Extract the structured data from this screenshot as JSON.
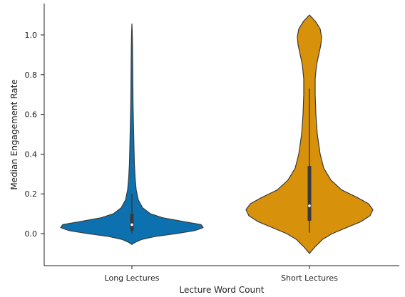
{
  "chart_data": {
    "type": "violin",
    "xlabel": "Lecture Word Count",
    "ylabel": "Median Engagement Rate",
    "categories": [
      "Long Lectures",
      "Short Lectures"
    ],
    "ylim": [
      -0.15,
      1.15
    ],
    "yticks": [
      0.0,
      0.2,
      0.4,
      0.6,
      0.8,
      1.0
    ],
    "ytick_labels": [
      "0.0",
      "0.2",
      "0.4",
      "0.6",
      "0.8",
      "1.0"
    ],
    "grid": false,
    "series": [
      {
        "category": "Long Lectures",
        "color": "#0d71b0",
        "median": 0.045,
        "q1": 0.015,
        "q3": 0.1,
        "whisker_low": 0.0,
        "whisker_high": 0.2,
        "density": [
          [
            -0.055,
            0.0
          ],
          [
            -0.045,
            0.04
          ],
          [
            -0.03,
            0.13
          ],
          [
            -0.015,
            0.32
          ],
          [
            0.0,
            0.62
          ],
          [
            0.015,
            0.88
          ],
          [
            0.03,
            1.0
          ],
          [
            0.045,
            0.97
          ],
          [
            0.06,
            0.74
          ],
          [
            0.08,
            0.43
          ],
          [
            0.1,
            0.26
          ],
          [
            0.13,
            0.15
          ],
          [
            0.17,
            0.09
          ],
          [
            0.22,
            0.06
          ],
          [
            0.28,
            0.045
          ],
          [
            0.35,
            0.035
          ],
          [
            0.45,
            0.028
          ],
          [
            0.55,
            0.022
          ],
          [
            0.65,
            0.016
          ],
          [
            0.8,
            0.012
          ],
          [
            0.95,
            0.008
          ],
          [
            1.02,
            0.004
          ],
          [
            1.055,
            0.0
          ]
        ]
      },
      {
        "category": "Short Lectures",
        "color": "#d8910b",
        "median": 0.14,
        "q1": 0.065,
        "q3": 0.34,
        "whisker_low": 0.005,
        "whisker_high": 0.73,
        "density": [
          [
            -0.1,
            0.0
          ],
          [
            -0.07,
            0.07
          ],
          [
            -0.03,
            0.18
          ],
          [
            0.0,
            0.32
          ],
          [
            0.03,
            0.52
          ],
          [
            0.06,
            0.72
          ],
          [
            0.09,
            0.85
          ],
          [
            0.12,
            0.89
          ],
          [
            0.15,
            0.83
          ],
          [
            0.18,
            0.68
          ],
          [
            0.22,
            0.45
          ],
          [
            0.27,
            0.3
          ],
          [
            0.33,
            0.2
          ],
          [
            0.4,
            0.15
          ],
          [
            0.5,
            0.11
          ],
          [
            0.6,
            0.09
          ],
          [
            0.7,
            0.08
          ],
          [
            0.78,
            0.08
          ],
          [
            0.85,
            0.1
          ],
          [
            0.9,
            0.13
          ],
          [
            0.95,
            0.16
          ],
          [
            0.99,
            0.17
          ],
          [
            1.03,
            0.15
          ],
          [
            1.07,
            0.08
          ],
          [
            1.1,
            0.0
          ]
        ]
      }
    ]
  }
}
